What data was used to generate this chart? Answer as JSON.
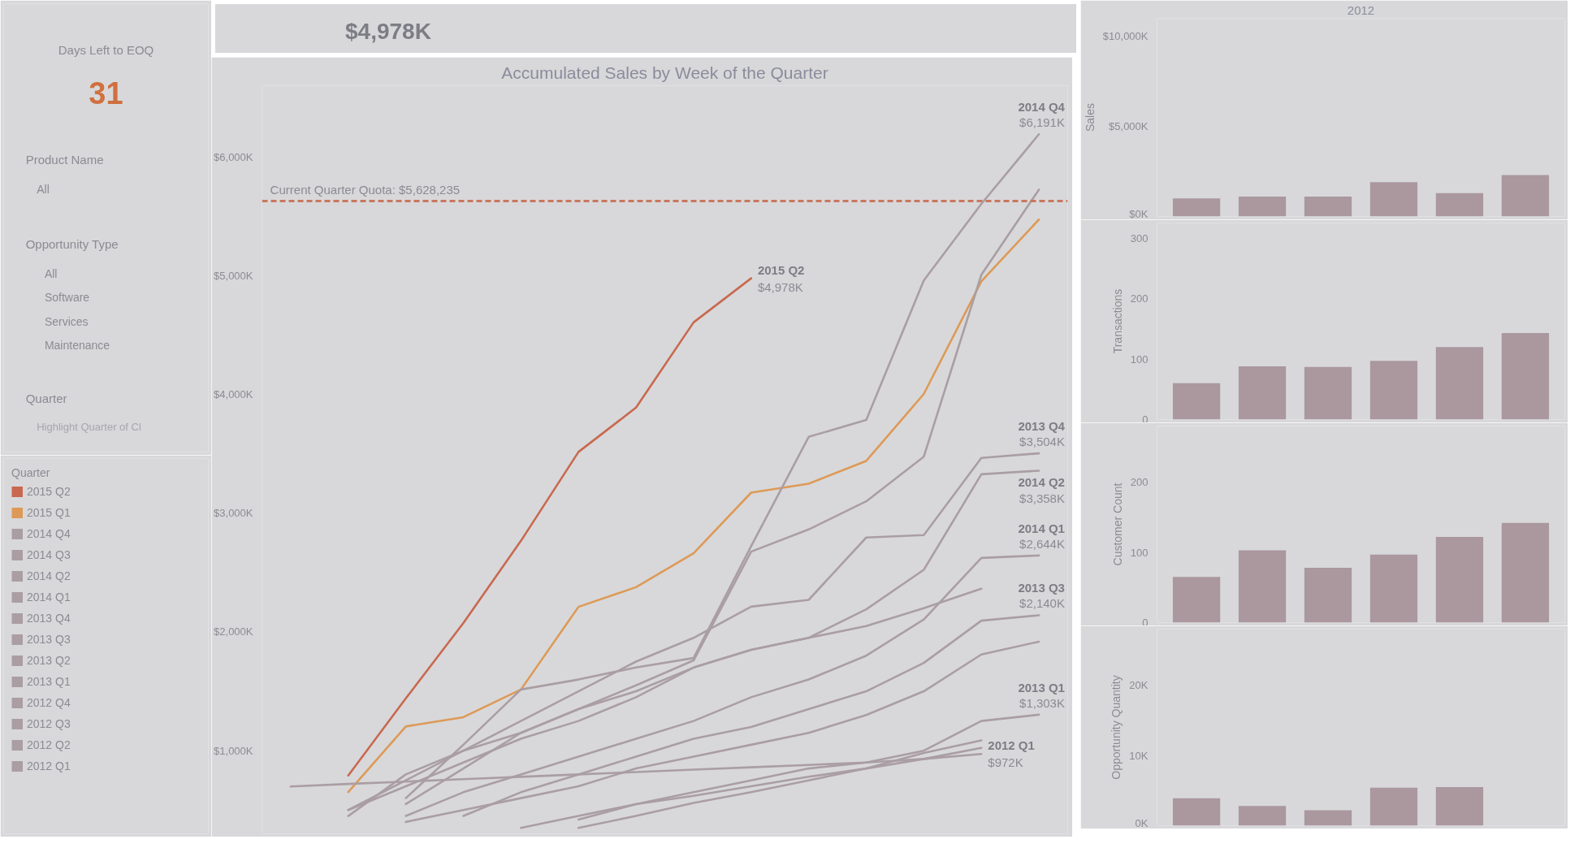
{
  "chart_data": [
    {
      "type": "other",
      "title": "Days Left to EOQ",
      "annotations": [
        "31",
        "Product Name",
        "All",
        "Opportunity Type",
        "All",
        "Software",
        "Services",
        "Maintenance",
        "Quarter",
        "Highlight Quarter of Cl"
      ]
    },
    {
      "type": "other",
      "title": "$4,978K"
    },
    {
      "type": "line",
      "title": "Accumulated Sales by Week of the Quarter",
      "categories": [
        null,
        null,
        null,
        null,
        null,
        null,
        null,
        null,
        null,
        null,
        null,
        null,
        null,
        null
      ],
      "ylim": [
        300,
        6600
      ],
      "yticks": [
        {
          "value": 1000,
          "label": "$1,000K"
        },
        {
          "value": 2000,
          "label": "$2,000K"
        },
        {
          "value": 3000,
          "label": "$3,000K"
        },
        {
          "value": 4000,
          "label": "$4,000K"
        },
        {
          "value": 5000,
          "label": "$5,000K"
        },
        {
          "value": 6000,
          "label": "$6,000K"
        }
      ],
      "tick_labels": "y",
      "grid": false,
      "legend": "left",
      "legend_title": "Quarter",
      "ref_lines": [
        {
          "axis": "y",
          "value": 5628.235,
          "label": "Current Quarter Quota: $5,628,235",
          "color": "#c9775f",
          "line_style": "dashed"
        }
      ],
      "series": [
        {
          "name": "2015 Q2",
          "color": "#c8694f",
          "values": [
            null,
            791,
            1440,
            2075,
            2767,
            3516,
            3889,
            4607,
            4978,
            null,
            null,
            null,
            null,
            null
          ],
          "value_labels": [
            null,
            null,
            null,
            null,
            null,
            null,
            null,
            null,
            "$4,978K",
            null,
            null,
            null,
            null,
            null
          ]
        },
        {
          "name": "2015 Q1",
          "color": "#dd9a57",
          "values": [
            null,
            651,
            1204,
            1282,
            1515,
            2211,
            2377,
            2663,
            3173,
            3248,
            3440,
            4004,
            4952,
            5473
          ]
        },
        {
          "name": "2014 Q4",
          "color": "#aa9ea3",
          "values": [
            null,
            null,
            600,
            1050,
            1515,
            1599,
            1701,
            1780,
            2722,
            3643,
            3785,
            4960,
            5605,
            6191
          ],
          "value_labels": [
            null,
            null,
            null,
            null,
            null,
            null,
            null,
            null,
            null,
            null,
            null,
            null,
            null,
            "$6,191K"
          ]
        },
        {
          "name": "2014 Q3",
          "color": "#aa9ea3",
          "values": [
            null,
            null,
            550,
            850,
            1150,
            1350,
            1550,
            1760,
            2676,
            2863,
            3100,
            3476,
            5008,
            5725
          ]
        },
        {
          "name": "2014 Q2",
          "color": "#aa9ea3",
          "values": [
            null,
            450,
            800,
            1000,
            1150,
            1350,
            1500,
            1700,
            1850,
            1950,
            2191,
            2523,
            3328,
            3358
          ],
          "value_labels": [
            null,
            null,
            null,
            null,
            null,
            null,
            null,
            null,
            null,
            null,
            null,
            null,
            null,
            "$3,358K"
          ]
        },
        {
          "name": "2014 Q1",
          "color": "#aa9ea3",
          "values": [
            null,
            null,
            450,
            650,
            800,
            950,
            1100,
            1250,
            1450,
            1600,
            1800,
            2105,
            2623,
            2644
          ],
          "value_labels": [
            null,
            null,
            null,
            null,
            null,
            null,
            null,
            null,
            null,
            null,
            null,
            null,
            null,
            "$2,644K"
          ]
        },
        {
          "name": "2013 Q4",
          "color": "#aa9ea3",
          "values": [
            null,
            500,
            750,
            1000,
            1250,
            1500,
            1750,
            1950,
            2213,
            2270,
            2795,
            2816,
            3465,
            3504
          ],
          "value_labels": [
            null,
            null,
            null,
            null,
            null,
            null,
            null,
            null,
            null,
            null,
            null,
            null,
            null,
            "$3,504K"
          ]
        },
        {
          "name": "2013 Q3",
          "color": "#aa9ea3",
          "values": [
            null,
            null,
            null,
            450,
            650,
            800,
            950,
            1100,
            1200,
            1350,
            1500,
            1739,
            2095,
            2140
          ],
          "value_labels": [
            null,
            null,
            null,
            null,
            null,
            null,
            null,
            null,
            null,
            null,
            null,
            null,
            null,
            "$2,140K"
          ]
        },
        {
          "name": "2013 Q2",
          "color": "#aa9ea3",
          "values": [
            null,
            500,
            700,
            900,
            1100,
            1250,
            1450,
            1700,
            1850,
            1950,
            2050,
            2200,
            2364,
            null
          ]
        },
        {
          "name": "2013 Q1",
          "color": "#aa9ea3",
          "values": [
            null,
            null,
            null,
            null,
            null,
            420,
            550,
            650,
            750,
            850,
            900,
            1000,
            1250,
            1303
          ],
          "value_labels": [
            null,
            null,
            null,
            null,
            null,
            null,
            null,
            null,
            null,
            null,
            null,
            null,
            null,
            "$1,303K"
          ]
        },
        {
          "name": "2012 Q4",
          "color": "#aa9ea3",
          "values": [
            null,
            null,
            400,
            500,
            600,
            700,
            850,
            950,
            1050,
            1150,
            1300,
            1500,
            1810,
            1918
          ]
        },
        {
          "name": "2012 Q3",
          "color": "#aa9ea3",
          "values": [
            null,
            null,
            null,
            null,
            null,
            350,
            450,
            560,
            650,
            750,
            850,
            980,
            1086,
            null
          ]
        },
        {
          "name": "2012 Q2",
          "color": "#aa9ea3",
          "values": [
            null,
            null,
            null,
            null,
            350,
            450,
            550,
            620,
            700,
            780,
            850,
            930,
            1023,
            null
          ]
        },
        {
          "name": "2012 Q1",
          "color": "#aa9ea3",
          "values": [
            698,
            720,
            740,
            760,
            780,
            800,
            820,
            840,
            860,
            880,
            900,
            930,
            972,
            null
          ],
          "value_labels": [
            null,
            null,
            null,
            null,
            null,
            null,
            null,
            null,
            null,
            null,
            null,
            null,
            "$972K",
            null
          ]
        }
      ]
    },
    {
      "type": "bar",
      "title": "2012",
      "ylabel": "Sales",
      "categories": [
        null,
        null,
        null,
        null,
        null,
        null
      ],
      "values": [
        1000,
        1100,
        1100,
        1900,
        1300,
        2300
      ],
      "color": "#aa989e",
      "ylim": [
        0,
        11000
      ],
      "yticks": [
        {
          "value": 0,
          "label": "$0K"
        },
        {
          "value": 5000,
          "label": "$5,000K"
        },
        {
          "value": 10000,
          "label": "$10,000K"
        }
      ],
      "tick_labels": "y",
      "grid": false
    },
    {
      "type": "bar",
      "ylabel": "Transactions",
      "categories": [
        null,
        null,
        null,
        null,
        null,
        null
      ],
      "values": [
        60,
        88,
        87,
        97,
        120,
        143
      ],
      "color": "#aa989e",
      "ylim": [
        0,
        325
      ],
      "yticks": [
        0,
        100,
        200,
        300
      ],
      "tick_labels": "y",
      "grid": false
    },
    {
      "type": "bar",
      "ylabel": "Customer Count",
      "categories": [
        null,
        null,
        null,
        null,
        null,
        null
      ],
      "values": [
        65,
        103,
        78,
        97,
        122,
        142
      ],
      "color": "#aa989e",
      "ylim": [
        0,
        280
      ],
      "yticks": [
        0,
        100,
        200
      ],
      "tick_labels": "y",
      "grid": false
    },
    {
      "type": "bar",
      "ylabel": "Opportunity Quantity",
      "categories": [
        null,
        null,
        null,
        null,
        null,
        null
      ],
      "values": [
        3900,
        2800,
        2200,
        5400,
        5500,
        null
      ],
      "color": "#aa989e",
      "ylim": [
        0,
        28000
      ],
      "yticks": [
        {
          "value": 0,
          "label": "0K"
        },
        {
          "value": 10000,
          "label": "10K"
        },
        {
          "value": 20000,
          "label": "20K"
        }
      ],
      "tick_labels": "y",
      "grid": false
    }
  ]
}
